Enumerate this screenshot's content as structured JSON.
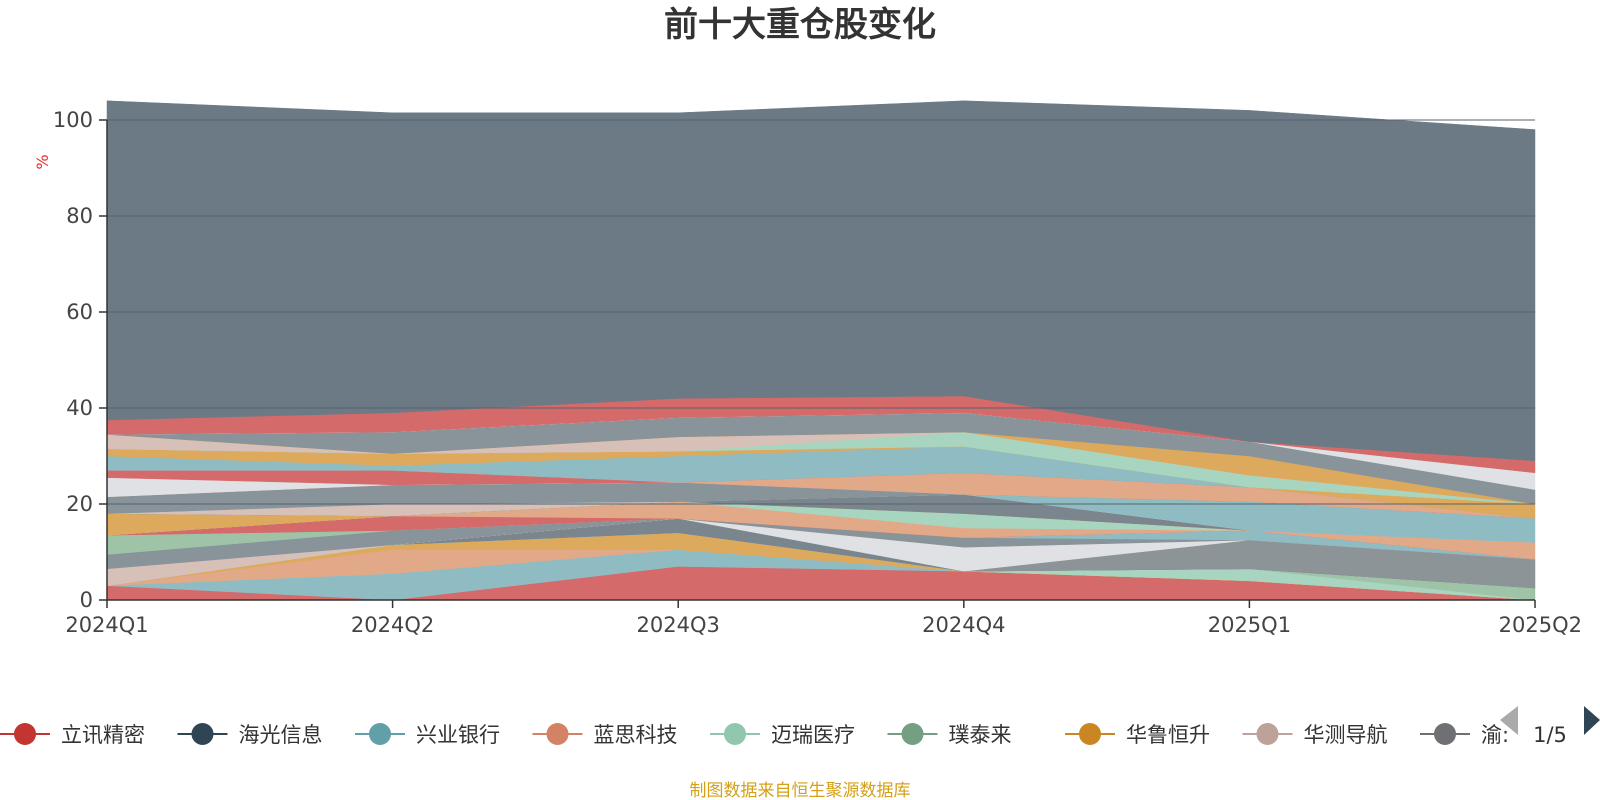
{
  "chart_data": {
    "type": "area",
    "title": "前十大重仓股变化",
    "ylabel": "%",
    "ylim": [
      0,
      100
    ],
    "yticks": [
      0,
      20,
      40,
      60,
      80,
      100
    ],
    "grid": true,
    "stacked": true,
    "categories": [
      "2024Q1",
      "2024Q2",
      "2024Q3",
      "2024Q4",
      "2025Q1",
      "2025Q2"
    ],
    "series": [
      {
        "name": "立讯精密",
        "color": "#d46a6a",
        "values": [
          3,
          0,
          7,
          6,
          4,
          0
        ]
      },
      {
        "name": "",
        "color": "#8fbcc3",
        "values": [
          0,
          5.5,
          3.5,
          0,
          0,
          0
        ]
      },
      {
        "name": "",
        "color": "#e2a989",
        "values": [
          0,
          5,
          0,
          0,
          0,
          0
        ]
      },
      {
        "name": "",
        "color": "#dda95c",
        "values": [
          0,
          1,
          3.5,
          0,
          0,
          0
        ]
      },
      {
        "name": "",
        "color": "#a8d5c0",
        "values": [
          0,
          0,
          0,
          0,
          2.5,
          0
        ]
      },
      {
        "name": "",
        "color": "#9fc3a6",
        "values": [
          0,
          0,
          0,
          0,
          0,
          2.5
        ]
      },
      {
        "name": "",
        "color": "#7a858e",
        "values": [
          0,
          0,
          3,
          0,
          0,
          0
        ]
      },
      {
        "name": "",
        "color": "#8d9498",
        "values": [
          0,
          0,
          0,
          0,
          6,
          6
        ]
      },
      {
        "name": "",
        "color": "#dfe1e4",
        "values": [
          0,
          0,
          0,
          5,
          0,
          0
        ]
      },
      {
        "name": "",
        "color": "#d6c0b8",
        "values": [
          3.5,
          0,
          0,
          0,
          0,
          0
        ]
      },
      {
        "name": "",
        "color": "#88939a",
        "values": [
          3,
          3,
          0,
          2,
          0,
          0
        ]
      },
      {
        "name": "",
        "color": "#8fbcc3",
        "values": [
          0,
          0,
          0,
          0,
          2,
          0
        ]
      },
      {
        "name": "",
        "color": "#9fc3a6",
        "values": [
          4,
          0,
          0,
          0,
          0,
          0
        ]
      },
      {
        "name": "",
        "color": "#d46a6a",
        "values": [
          0,
          3,
          0,
          0,
          0,
          0
        ]
      },
      {
        "name": "",
        "color": "#e2a989",
        "values": [
          0,
          0,
          3.5,
          2,
          0,
          3.5
        ]
      },
      {
        "name": "",
        "color": "#a8d5c0",
        "values": [
          0,
          0,
          0,
          3,
          0,
          0
        ]
      },
      {
        "name": "",
        "color": "#dda95c",
        "values": [
          4.5,
          0,
          0,
          0,
          0,
          0
        ]
      },
      {
        "name": "",
        "color": "#7a858e",
        "values": [
          0,
          0,
          0,
          4,
          0,
          0
        ]
      },
      {
        "name": "",
        "color": "#d6c0b8",
        "values": [
          0,
          2.5,
          0,
          0,
          0,
          0
        ]
      },
      {
        "name": "",
        "color": "#8fbcc3",
        "values": [
          0,
          0,
          0,
          0,
          6,
          5
        ]
      },
      {
        "name": "",
        "color": "#88939a",
        "values": [
          3.5,
          4,
          4,
          0,
          0,
          0
        ]
      },
      {
        "name": "",
        "color": "#e2a989",
        "values": [
          0,
          0,
          0,
          4.5,
          3,
          0
        ]
      },
      {
        "name": "",
        "color": "#dfe1e4",
        "values": [
          4,
          0,
          0,
          0,
          0,
          0
        ]
      },
      {
        "name": "",
        "color": "#d46a6a",
        "values": [
          1.5,
          3,
          0,
          0,
          0,
          0
        ]
      },
      {
        "name": "",
        "color": "#8fbcc3",
        "values": [
          3,
          1,
          5.5,
          5.5,
          0,
          0
        ]
      },
      {
        "name": "",
        "color": "#dda95c",
        "values": [
          1.5,
          2.5,
          1,
          0,
          0,
          3
        ]
      },
      {
        "name": "",
        "color": "#a8d5c0",
        "values": [
          0,
          0,
          0,
          3,
          2.5,
          0
        ]
      },
      {
        "name": "",
        "color": "#d6c0b8",
        "values": [
          3,
          0,
          3,
          0,
          0,
          0
        ]
      },
      {
        "name": "",
        "color": "#dda95c",
        "values": [
          0,
          0,
          0,
          0,
          4,
          0
        ]
      },
      {
        "name": "",
        "color": "#88939a",
        "values": [
          0,
          4.5,
          4,
          4,
          3,
          3
        ]
      },
      {
        "name": "",
        "color": "#dfe1e4",
        "values": [
          0,
          0,
          0,
          0,
          0,
          3.5
        ]
      },
      {
        "name": "",
        "color": "#d46a6a",
        "values": [
          3,
          4,
          4,
          3.5,
          0,
          2.5
        ]
      },
      {
        "name": "",
        "color": "#6c7a86",
        "values": [
          66.5,
          62.5,
          59.5,
          61.5,
          69,
          69
        ]
      }
    ],
    "legend": [
      {
        "name": "立讯精密",
        "color": "#c23531"
      },
      {
        "name": "海光信息",
        "color": "#2f4554"
      },
      {
        "name": "兴业银行",
        "color": "#61a0a8"
      },
      {
        "name": "蓝思科技",
        "color": "#d48265"
      },
      {
        "name": "迈瑞医疗",
        "color": "#91c7ae"
      },
      {
        "name": "璞泰来",
        "color": "#749f83"
      },
      {
        "name": "华鲁恒升",
        "color": "#ca8622"
      },
      {
        "name": "华测导航",
        "color": "#bda29a"
      },
      {
        "name": "渝:",
        "color": "#6e7074"
      }
    ],
    "legend_position": "bottom",
    "legend_page": "1/5",
    "source_note": "制图数据来自恒生聚源数据库"
  }
}
